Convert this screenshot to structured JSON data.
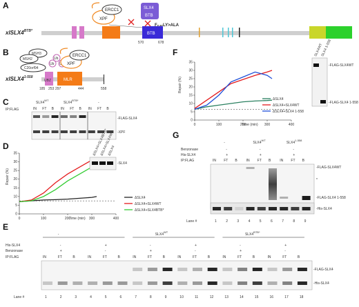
{
  "panels": [
    "A",
    "B",
    "C",
    "D",
    "E",
    "F",
    "G"
  ],
  "panel_a": {
    "construct": "xlSLX4",
    "construct_sup": "BTB*",
    "ovals": [
      "XPF",
      "ERCC1"
    ],
    "btb_box": [
      "SLX4",
      "BTB"
    ],
    "mutation": "F",
    "mutation_sub": "646",
    "mutation_tail": "LY>ALA",
    "domain_btb": "BTB",
    "pos_start": "570",
    "pos_end": "678"
  },
  "panel_b": {
    "construct": "xlSLX4",
    "construct_sup": "1-558",
    "ovals": [
      "MSH3",
      "MSH2",
      "C20orf94",
      "Ub",
      "Ub",
      "Ub",
      "XPF",
      "ERCC1"
    ],
    "domain_ubz": "UBZ",
    "domain_mlr": "MLR",
    "positions": [
      "185",
      "253",
      "297",
      "444",
      "558"
    ]
  },
  "panel_c": {
    "ip": "IP:FLAG",
    "groups": [
      "SLX4",
      "SLX4",
      "-"
    ],
    "group_sups": [
      "WT",
      "BTB*",
      ""
    ],
    "lanes": [
      "IN",
      "FT",
      "B",
      "IN",
      "FT",
      "B",
      "IN",
      "FT",
      "B"
    ],
    "bands": [
      "-FLAG-SLX4",
      "-XPF"
    ]
  },
  "panel_d": {
    "ylabel": "Repair (%)",
    "xlabel": "Time (min)",
    "legend": [
      "ΔSLX4",
      "ΔSLX4+SLX4WT",
      "ΔSLX4+SLX4BTB*"
    ],
    "inset_cols": [
      "ΔSLX4+SLX4BTB*",
      "ΔSLX4+SLX4WT",
      "ΔSLX4"
    ],
    "inset_band": "-SLX4",
    "chart_data": {
      "type": "line",
      "x": [
        0,
        50,
        100,
        150,
        200,
        250,
        300,
        320
      ],
      "series": [
        {
          "name": "ΔSLX4",
          "color": "#222222",
          "values": [
            7,
            7.5,
            8,
            8.2,
            8.5,
            9,
            9.5,
            10
          ]
        },
        {
          "name": "ΔSLX4+SLX4WT",
          "color": "#e41a1c",
          "values": [
            7,
            8,
            12,
            18,
            23,
            27,
            31,
            32
          ]
        },
        {
          "name": "ΔSLX4+SLX4BTB*",
          "color": "#33cc33",
          "values": [
            7,
            7.5,
            10,
            14,
            19,
            23,
            27,
            28
          ]
        }
      ],
      "ylim": [
        0,
        35
      ],
      "xlim": [
        0,
        400
      ],
      "yticks": [
        "0",
        "5",
        "10",
        "15",
        "20",
        "25",
        "30",
        "35"
      ],
      "xticks": [
        "0",
        "100",
        "200",
        "300",
        "400"
      ],
      "baseline": 7.5
    }
  },
  "panel_e": {
    "ip": "IP:FLAG",
    "row_labels": [
      "His-SLX4",
      "Benzonase",
      "IP:FLAG"
    ],
    "groups": [
      "-",
      "SLX4",
      "SLX4"
    ],
    "group_sups": [
      "",
      "WT",
      "BTB*"
    ],
    "his_marks": [
      "-",
      "+",
      "-",
      "+",
      "-",
      "+"
    ],
    "benz_marks": [
      "+",
      "-",
      "+",
      "-",
      "+",
      "-"
    ],
    "lanes": [
      "IN",
      "FT",
      "B",
      "IN",
      "FT",
      "B",
      "IN",
      "FT",
      "B",
      "IN",
      "FT",
      "B",
      "IN",
      "FT",
      "B",
      "IN",
      "FT",
      "B"
    ],
    "lane_label": "Lane #",
    "lane_nums": [
      "1",
      "2",
      "3",
      "4",
      "5",
      "6",
      "7",
      "8",
      "9",
      "10",
      "11",
      "12",
      "13",
      "14",
      "15",
      "16",
      "17",
      "18"
    ],
    "bands": [
      "-FLAG-SLX4",
      "-His-SLX4"
    ]
  },
  "panel_f": {
    "ylabel": "Repair (%)",
    "xlabel": "Time (min)",
    "legend": [
      "ΔSLX4",
      "ΔSLX4+SLX4WT",
      "ΔSLX4+SLX4 1-558"
    ],
    "inset_cols": [
      "SLX4WT",
      "SLX4 1-558"
    ],
    "inset_bands": [
      "-FLAG-SLX4WT",
      "-FLAG-SLX4 1-558"
    ],
    "chart_data": {
      "type": "line",
      "x": [
        0,
        50,
        100,
        150,
        200,
        250,
        300,
        320
      ],
      "series": [
        {
          "name": "ΔSLX4",
          "color": "#2a8060",
          "values": [
            6.5,
            8,
            9,
            10,
            11,
            11.5,
            11.8,
            12
          ]
        },
        {
          "name": "ΔSLX4+SLX4WT",
          "color": "#e41a1c",
          "values": [
            7,
            12,
            17,
            22,
            24.5,
            27,
            29,
            30
          ]
        },
        {
          "name": "ΔSLX4+SLX4 1-558",
          "color": "#1f4fd8",
          "values": [
            6.5,
            9,
            15,
            23,
            26,
            29,
            27,
            25
          ]
        }
      ],
      "ylim": [
        0,
        35
      ],
      "xlim": [
        0,
        400
      ],
      "yticks": [
        "0",
        "5",
        "10",
        "15",
        "20",
        "25",
        "30",
        "35"
      ],
      "xticks": [
        "0",
        "100",
        "200",
        "300",
        "400"
      ],
      "baseline": 6.5
    }
  },
  "panel_g": {
    "row_labels": [
      "Benzonase",
      "His-SLX4",
      "IP:FLAG"
    ],
    "groups": [
      "-",
      "SLX4",
      "SLX4"
    ],
    "group_sups": [
      "",
      "WT",
      "1-558"
    ],
    "benz_marks": [
      "-",
      "-",
      "-"
    ],
    "his_marks": [
      "+",
      "+",
      "+"
    ],
    "lanes": [
      "IN",
      "FT",
      "B",
      "IN",
      "FT",
      "B",
      "IN",
      "FT",
      "B"
    ],
    "lane_label": "Lane #",
    "lane_nums": [
      "1",
      "2",
      "3",
      "4",
      "5",
      "6",
      "7",
      "8",
      "9"
    ],
    "bands": [
      "-FLAG-SLX4WT",
      "*",
      "-FLAG-SLX4 1-558",
      "-His-SLX4"
    ]
  }
}
